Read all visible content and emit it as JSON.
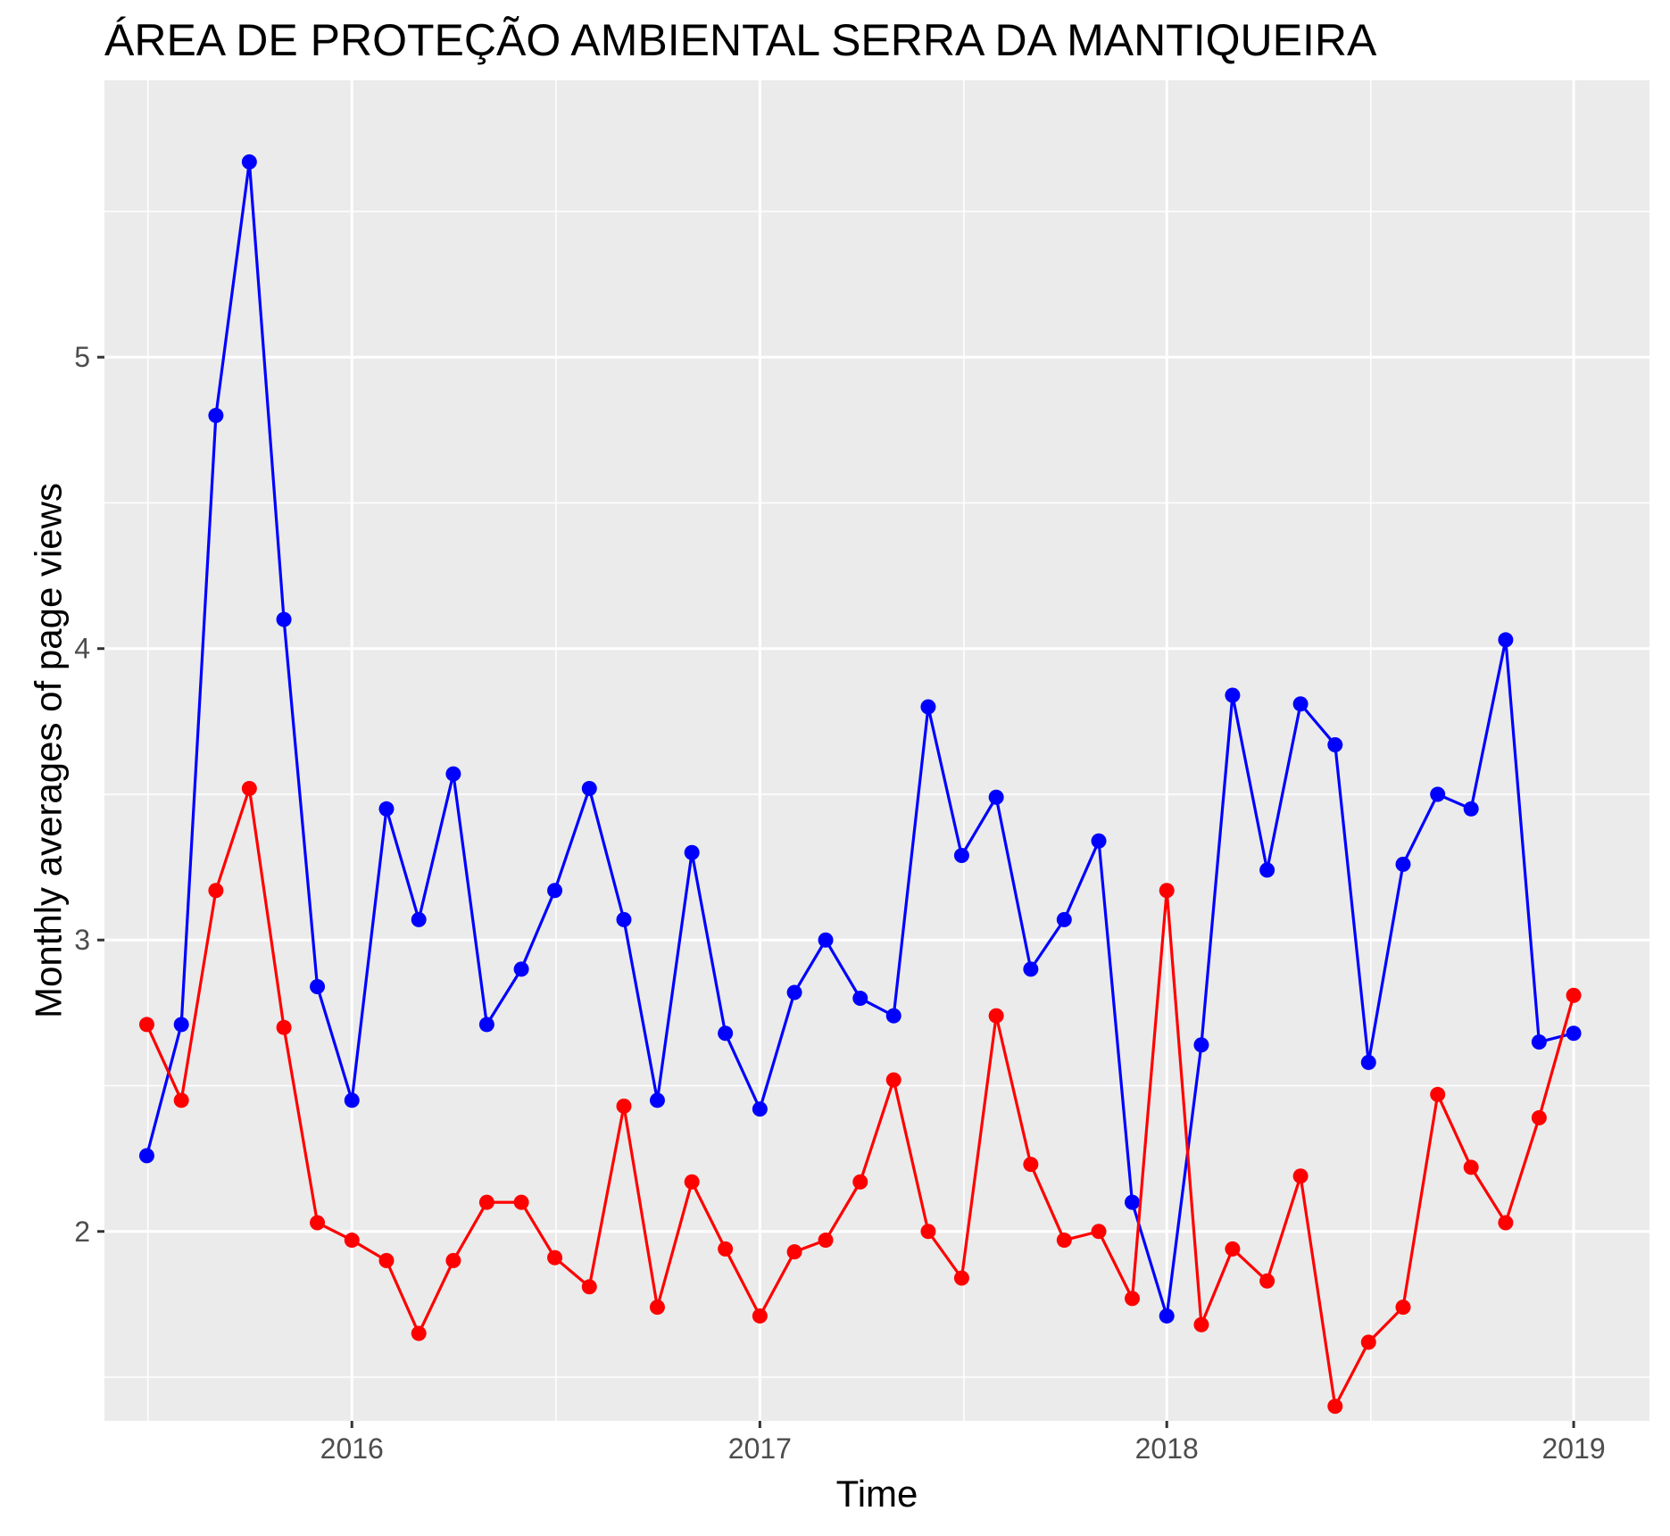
{
  "chart_data": {
    "type": "line",
    "title": "ÁREA DE PROTEÇÃO AMBIENTAL SERRA DA MANTIQUEIRA",
    "xlabel": "Time",
    "ylabel": "Monthly averages of page views",
    "xlim": [
      "2015-05-24",
      "2019-03-10"
    ],
    "ylim": [
      1.35,
      5.95
    ],
    "x_ticks": [
      {
        "date": "2016-01-01",
        "label": "2016"
      },
      {
        "date": "2017-01-01",
        "label": "2017"
      },
      {
        "date": "2018-01-01",
        "label": "2018"
      },
      {
        "date": "2019-01-01",
        "label": "2019"
      }
    ],
    "y_ticks": [
      2,
      3,
      4,
      5
    ],
    "grid": true,
    "background": "#ebebeb",
    "x": [
      "2015-07-01",
      "2015-08-01",
      "2015-09-01",
      "2015-10-01",
      "2015-11-01",
      "2015-12-01",
      "2016-01-01",
      "2016-02-01",
      "2016-03-01",
      "2016-04-01",
      "2016-05-01",
      "2016-06-01",
      "2016-07-01",
      "2016-08-01",
      "2016-09-01",
      "2016-10-01",
      "2016-11-01",
      "2016-12-01",
      "2017-01-01",
      "2017-02-01",
      "2017-03-01",
      "2017-04-01",
      "2017-05-01",
      "2017-06-01",
      "2017-07-01",
      "2017-08-01",
      "2017-09-01",
      "2017-10-01",
      "2017-11-01",
      "2017-12-01",
      "2018-01-01",
      "2018-02-01",
      "2018-03-01",
      "2018-04-01",
      "2018-05-01",
      "2018-06-01",
      "2018-07-01",
      "2018-08-01",
      "2018-09-01",
      "2018-10-01",
      "2018-11-01",
      "2018-12-01",
      "2019-01-01"
    ],
    "series": [
      {
        "color": "#0000ff",
        "values": [
          2.26,
          2.71,
          4.8,
          5.67,
          4.1,
          2.84,
          2.45,
          3.45,
          3.07,
          3.57,
          2.71,
          2.9,
          3.17,
          3.52,
          3.07,
          2.45,
          3.3,
          2.68,
          2.42,
          2.82,
          3.0,
          2.8,
          2.74,
          3.8,
          3.29,
          3.49,
          2.9,
          3.07,
          3.34,
          2.1,
          1.71,
          2.64,
          3.84,
          3.24,
          3.81,
          3.67,
          2.58,
          3.26,
          3.5,
          3.45,
          4.03,
          2.65,
          2.68
        ]
      },
      {
        "color": "#ff0000",
        "values": [
          2.71,
          2.45,
          3.17,
          3.52,
          2.7,
          2.03,
          1.97,
          1.9,
          1.65,
          1.9,
          2.1,
          2.1,
          1.91,
          1.81,
          2.43,
          1.74,
          2.17,
          1.94,
          1.71,
          1.93,
          1.97,
          2.17,
          2.52,
          2.0,
          1.84,
          2.74,
          2.23,
          1.97,
          2.0,
          1.77,
          3.17,
          1.68,
          1.94,
          1.83,
          2.19,
          1.4,
          1.62,
          1.74,
          2.47,
          2.22,
          2.03,
          2.39,
          2.81
        ]
      }
    ]
  }
}
